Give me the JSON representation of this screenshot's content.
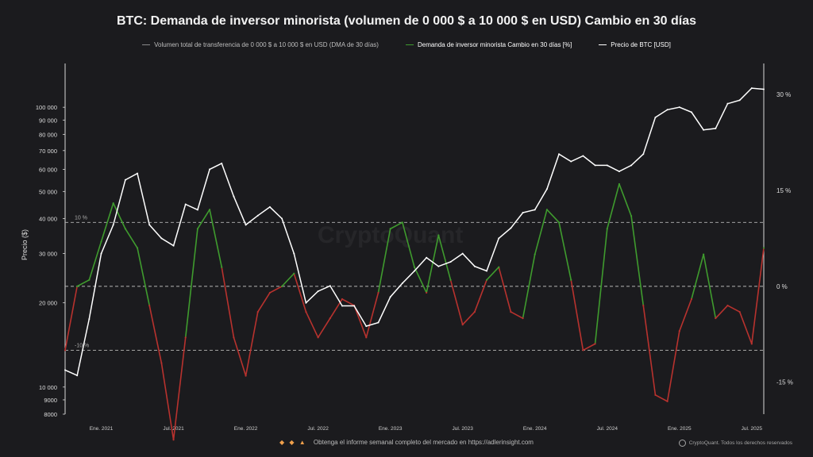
{
  "header": {
    "title": "BTC: Demanda de inversor minorista (volumen de 0 000 $ a 10 000 $ en USD) Cambio en 30 días"
  },
  "legend": {
    "items": [
      {
        "label": "Volumen total de transferencia de 0 000 $ a 10 000 $ en USD (DMA de 30 días)",
        "color": "#8a8a8a"
      },
      {
        "label": "Demanda de inversor minorista Cambio en 30 días [%]",
        "color": "#3f9b2e"
      },
      {
        "label": "Precio de BTC [USD]",
        "color": "#ffffff"
      }
    ]
  },
  "watermark": "CryptoQuant",
  "footer": {
    "icons": "◆ ◆ ▲",
    "text": "Obtenga el informe semanal completo del mercado en https://adlerinsight.com"
  },
  "credit": {
    "text": "CryptoQuant. Todos los derechos reservados"
  },
  "chart_data": {
    "type": "line",
    "x_ticks": [
      "Ene. 2021",
      "Jul. 2021",
      "Ene. 2022",
      "Jul. 2022",
      "Ene. 2023",
      "Jul. 2023",
      "Ene. 2024",
      "Jul. 2024",
      "Ene. 2025",
      "Jul. 2025"
    ],
    "x_range": [
      "2020-10",
      "2025-08"
    ],
    "left_axis": {
      "label": "Precio ($)",
      "scale": "log",
      "ylim": [
        8000,
        130000
      ],
      "ticks": [
        8000,
        9000,
        10000,
        20000,
        30000,
        40000,
        50000,
        60000,
        70000,
        80000,
        90000,
        100000
      ],
      "tick_labels": [
        "8000",
        "9000",
        "10 000",
        "20 000",
        "30 000",
        "40 000",
        "50 000",
        "60 000",
        "70 000",
        "80 000",
        "90 000",
        "100 000"
      ]
    },
    "right_axis": {
      "ylim": [
        -20,
        33
      ],
      "ticks": [
        30,
        15,
        0,
        -15
      ],
      "tick_labels": [
        "30 %",
        "15 %",
        "0 %",
        "-15 %"
      ]
    },
    "reference_lines": [
      {
        "value": 10,
        "label": "10 %"
      },
      {
        "value": 0,
        "label": ""
      },
      {
        "value": -10,
        "label": "-10 %"
      }
    ],
    "series": [
      {
        "name": "Precio de BTC [USD]",
        "axis": "left",
        "color": "#ffffff",
        "x": [
          "2020-10",
          "2020-11",
          "2020-12",
          "2021-01",
          "2021-02",
          "2021-03",
          "2021-04",
          "2021-05",
          "2021-06",
          "2021-07",
          "2021-08",
          "2021-09",
          "2021-10",
          "2021-11",
          "2021-12",
          "2022-01",
          "2022-02",
          "2022-03",
          "2022-04",
          "2022-05",
          "2022-06",
          "2022-07",
          "2022-08",
          "2022-09",
          "2022-10",
          "2022-11",
          "2022-12",
          "2023-01",
          "2023-02",
          "2023-03",
          "2023-04",
          "2023-05",
          "2023-06",
          "2023-07",
          "2023-08",
          "2023-09",
          "2023-10",
          "2023-11",
          "2023-12",
          "2024-01",
          "2024-02",
          "2024-03",
          "2024-04",
          "2024-05",
          "2024-06",
          "2024-07",
          "2024-08",
          "2024-09",
          "2024-10",
          "2024-11",
          "2024-12",
          "2025-01",
          "2025-02",
          "2025-03",
          "2025-04",
          "2025-05",
          "2025-06",
          "2025-07",
          "2025-08"
        ],
        "values": [
          11500,
          11000,
          17500,
          30000,
          38000,
          55000,
          58000,
          38000,
          34000,
          32000,
          45000,
          43000,
          60000,
          63000,
          48000,
          38000,
          41000,
          44000,
          40000,
          30000,
          20000,
          22000,
          23000,
          19500,
          19500,
          16500,
          17000,
          21000,
          23500,
          26000,
          29000,
          27000,
          28000,
          30000,
          27000,
          26000,
          34000,
          37000,
          42000,
          43000,
          51000,
          68000,
          64000,
          67000,
          62000,
          62000,
          59000,
          62000,
          68000,
          92000,
          98000,
          100000,
          96000,
          83000,
          84000,
          103000,
          106000,
          117000,
          116000
        ]
      },
      {
        "name": "Demanda de inversor minorista Cambio en 30 días [%]",
        "axis": "right",
        "color_positive": "#3f9b2e",
        "color_negative": "#b8322e",
        "x": [
          "2020-10",
          "2020-11",
          "2020-12",
          "2021-01",
          "2021-02",
          "2021-03",
          "2021-04",
          "2021-05",
          "2021-06",
          "2021-07",
          "2021-08",
          "2021-09",
          "2021-10",
          "2021-11",
          "2021-12",
          "2022-01",
          "2022-02",
          "2022-03",
          "2022-04",
          "2022-05",
          "2022-06",
          "2022-07",
          "2022-08",
          "2022-09",
          "2022-10",
          "2022-11",
          "2022-12",
          "2023-01",
          "2023-02",
          "2023-03",
          "2023-04",
          "2023-05",
          "2023-06",
          "2023-07",
          "2023-08",
          "2023-09",
          "2023-10",
          "2023-11",
          "2023-12",
          "2024-01",
          "2024-02",
          "2024-03",
          "2024-04",
          "2024-05",
          "2024-06",
          "2024-07",
          "2024-08",
          "2024-09",
          "2024-10",
          "2024-11",
          "2024-12",
          "2025-01",
          "2025-02",
          "2025-03",
          "2025-04",
          "2025-05",
          "2025-06",
          "2025-07",
          "2025-08"
        ],
        "values": [
          -10,
          0,
          1,
          7,
          13,
          9,
          6,
          -3,
          -12,
          -24,
          -8,
          9,
          12,
          3,
          -8,
          -14,
          -4,
          -1,
          0,
          2,
          -4,
          -8,
          -5,
          -2,
          -3,
          -8,
          -1,
          9,
          10,
          3,
          -1,
          8,
          1,
          -6,
          -4,
          1,
          3,
          -4,
          -5,
          5,
          12,
          10,
          1,
          -10,
          -9,
          9,
          16,
          11,
          -3,
          -17,
          -18,
          -7,
          -2,
          5,
          -5,
          -3,
          -4,
          -9,
          6
        ]
      }
    ]
  }
}
